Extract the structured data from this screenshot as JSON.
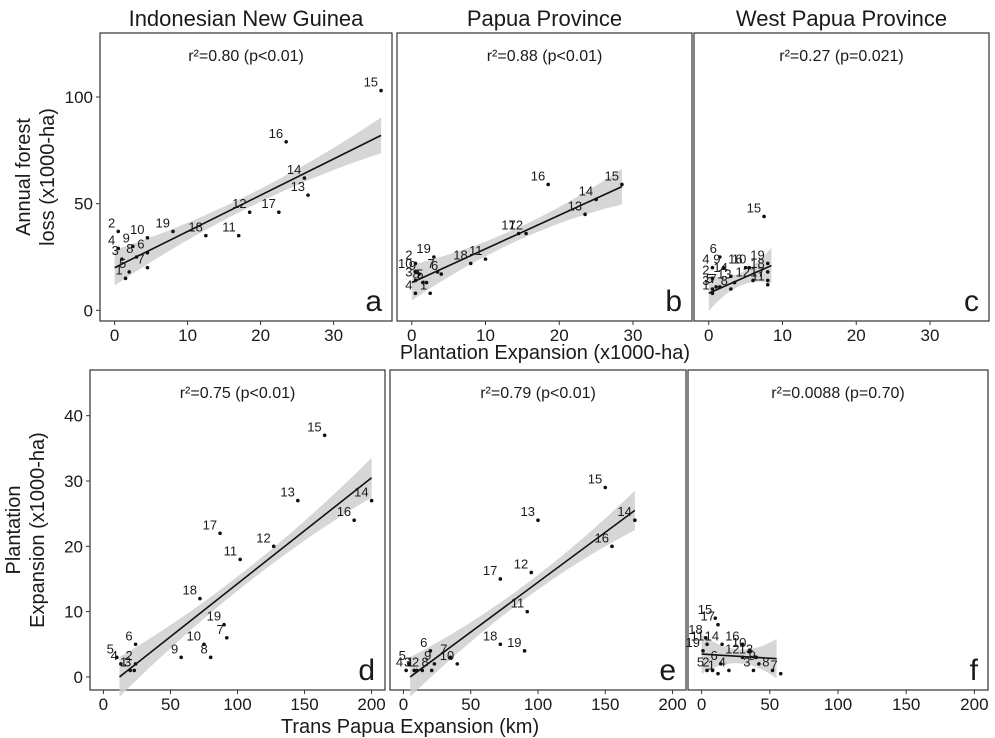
{
  "chart_data": [
    {
      "id": "a",
      "type": "scatter",
      "panel_letter": "a",
      "title": "Indonesian New Guinea",
      "stat": "r²=0.80 (p<0.01)",
      "xlabel": "Plantation Expansion (x1000-ha)",
      "ylabel": "Annual forest loss (x1000-ha)",
      "xlim": [
        -2,
        38
      ],
      "ylim": [
        -5,
        130
      ],
      "xticks": [
        0,
        10,
        20,
        30
      ],
      "yticks": [
        0,
        50,
        100
      ],
      "fit": {
        "x1": 0,
        "y1": 20,
        "x2": 36.5,
        "y2": 82
      },
      "points": [
        {
          "label": "1",
          "x": 1.5,
          "y": 15
        },
        {
          "label": "2",
          "x": 0.5,
          "y": 37
        },
        {
          "label": "3",
          "x": 1.0,
          "y": 24
        },
        {
          "label": "4",
          "x": 0.5,
          "y": 29
        },
        {
          "label": "5",
          "x": 2.0,
          "y": 18
        },
        {
          "label": "6",
          "x": 4.5,
          "y": 27
        },
        {
          "label": "7",
          "x": 4.5,
          "y": 20
        },
        {
          "label": "8",
          "x": 3.0,
          "y": 25
        },
        {
          "label": "9",
          "x": 2.5,
          "y": 30
        },
        {
          "label": "10",
          "x": 4.5,
          "y": 34
        },
        {
          "label": "11",
          "x": 17.0,
          "y": 35
        },
        {
          "label": "12",
          "x": 18.5,
          "y": 46
        },
        {
          "label": "13",
          "x": 26.5,
          "y": 54
        },
        {
          "label": "14",
          "x": 26.0,
          "y": 62
        },
        {
          "label": "15",
          "x": 36.5,
          "y": 103
        },
        {
          "label": "16",
          "x": 23.5,
          "y": 79
        },
        {
          "label": "17",
          "x": 22.5,
          "y": 46
        },
        {
          "label": "18",
          "x": 12.5,
          "y": 35
        },
        {
          "label": "19",
          "x": 8.0,
          "y": 37
        }
      ]
    },
    {
      "id": "b",
      "type": "scatter",
      "panel_letter": "b",
      "title": "Papua Province",
      "stat": "r²=0.88 (p<0.01)",
      "xlabel": "Plantation Expansion (x1000-ha)",
      "ylabel": "Annual forest loss (x1000-ha)",
      "xlim": [
        -2,
        38
      ],
      "ylim": [
        -5,
        130
      ],
      "xticks": [
        0,
        10,
        20,
        30
      ],
      "yticks": [
        0,
        50,
        100
      ],
      "fit": {
        "x1": 0,
        "y1": 13,
        "x2": 28.5,
        "y2": 58
      },
      "points": [
        {
          "label": "1",
          "x": 2.5,
          "y": 8
        },
        {
          "label": "2",
          "x": 0.5,
          "y": 22
        },
        {
          "label": "3",
          "x": 0.5,
          "y": 14
        },
        {
          "label": "4",
          "x": 0.5,
          "y": 8
        },
        {
          "label": "5",
          "x": 2.0,
          "y": 13
        },
        {
          "label": "6",
          "x": 4.0,
          "y": 17
        },
        {
          "label": "7",
          "x": 3.5,
          "y": 18
        },
        {
          "label": "8",
          "x": 1.5,
          "y": 13
        },
        {
          "label": "9",
          "x": 1.0,
          "y": 17
        },
        {
          "label": "10",
          "x": 0.5,
          "y": 18
        },
        {
          "label": "11",
          "x": 10.0,
          "y": 24
        },
        {
          "label": "12",
          "x": 15.5,
          "y": 36
        },
        {
          "label": "13",
          "x": 23.5,
          "y": 45
        },
        {
          "label": "14",
          "x": 25.0,
          "y": 52
        },
        {
          "label": "15",
          "x": 28.5,
          "y": 59
        },
        {
          "label": "16",
          "x": 18.5,
          "y": 59
        },
        {
          "label": "17",
          "x": 14.5,
          "y": 36
        },
        {
          "label": "18",
          "x": 8.0,
          "y": 22
        },
        {
          "label": "19",
          "x": 3.0,
          "y": 25
        }
      ]
    },
    {
      "id": "c",
      "type": "scatter",
      "panel_letter": "c",
      "title": "West Papua Province",
      "stat": "r²=0.27 (p=0.021)",
      "xlabel": "Plantation Expansion (x1000-ha)",
      "ylabel": "Annual forest loss (x1000-ha)",
      "xlim": [
        -2,
        38
      ],
      "ylim": [
        -5,
        130
      ],
      "xticks": [
        0,
        10,
        20,
        30
      ],
      "yticks": [
        0,
        50,
        100
      ],
      "fit": {
        "x1": 0,
        "y1": 8,
        "x2": 8.5,
        "y2": 21
      },
      "points": [
        {
          "label": "1",
          "x": 0.5,
          "y": 8
        },
        {
          "label": "2",
          "x": 0.5,
          "y": 15
        },
        {
          "label": "3",
          "x": 0.5,
          "y": 10
        },
        {
          "label": "4",
          "x": 0.5,
          "y": 20
        },
        {
          "label": "5",
          "x": 1.0,
          "y": 11
        },
        {
          "label": "6",
          "x": 1.5,
          "y": 25
        },
        {
          "label": "7",
          "x": 1.5,
          "y": 11
        },
        {
          "label": "8",
          "x": 3.0,
          "y": 10
        },
        {
          "label": "9",
          "x": 2.0,
          "y": 20
        },
        {
          "label": "10",
          "x": 5.5,
          "y": 20
        },
        {
          "label": "11",
          "x": 8.0,
          "y": 12
        },
        {
          "label": "12",
          "x": 6.0,
          "y": 14
        },
        {
          "label": "13",
          "x": 3.5,
          "y": 13
        },
        {
          "label": "14",
          "x": 3.0,
          "y": 16
        },
        {
          "label": "15",
          "x": 7.5,
          "y": 44
        },
        {
          "label": "16",
          "x": 5.0,
          "y": 20
        },
        {
          "label": "17",
          "x": 8.0,
          "y": 14
        },
        {
          "label": "18",
          "x": 8.0,
          "y": 18
        },
        {
          "label": "19",
          "x": 8.0,
          "y": 22
        }
      ]
    },
    {
      "id": "d",
      "type": "scatter",
      "panel_letter": "d",
      "title": "",
      "stat": "r²=0.75 (p<0.01)",
      "xlabel": "Trans Papua Expansion (km)",
      "ylabel": "Plantation Expansion (x1000-ha)",
      "xlim": [
        -10,
        210
      ],
      "ylim": [
        -2,
        47
      ],
      "xticks": [
        0,
        50,
        100,
        150,
        200
      ],
      "yticks": [
        0,
        10,
        20,
        30,
        40
      ],
      "fit": {
        "x1": 12,
        "y1": 0,
        "x2": 200,
        "y2": 30.5
      },
      "points": [
        {
          "label": "1",
          "x": 20,
          "y": 1
        },
        {
          "label": "2",
          "x": 24,
          "y": 2
        },
        {
          "label": "3",
          "x": 23,
          "y": 1
        },
        {
          "label": "4",
          "x": 13,
          "y": 2
        },
        {
          "label": "5",
          "x": 10,
          "y": 3
        },
        {
          "label": "6",
          "x": 24,
          "y": 5
        },
        {
          "label": "7",
          "x": 92,
          "y": 6
        },
        {
          "label": "8",
          "x": 80,
          "y": 3
        },
        {
          "label": "9",
          "x": 58,
          "y": 3
        },
        {
          "label": "10",
          "x": 75,
          "y": 5
        },
        {
          "label": "11",
          "x": 102,
          "y": 18
        },
        {
          "label": "12",
          "x": 127,
          "y": 20
        },
        {
          "label": "13",
          "x": 145,
          "y": 27
        },
        {
          "label": "14",
          "x": 200,
          "y": 27
        },
        {
          "label": "15",
          "x": 165,
          "y": 37
        },
        {
          "label": "16",
          "x": 187,
          "y": 24
        },
        {
          "label": "17",
          "x": 87,
          "y": 22
        },
        {
          "label": "18",
          "x": 72,
          "y": 12
        },
        {
          "label": "19",
          "x": 90,
          "y": 8
        }
      ]
    },
    {
      "id": "e",
      "type": "scatter",
      "panel_letter": "e",
      "title": "",
      "stat": "r²=0.79 (p<0.01)",
      "xlabel": "Trans Papua Expansion (km)",
      "ylabel": "Plantation Expansion (x1000-ha)",
      "xlim": [
        -10,
        210
      ],
      "ylim": [
        -2,
        47
      ],
      "xticks": [
        0,
        50,
        100,
        150,
        200
      ],
      "yticks": [
        0,
        10,
        20,
        30,
        40
      ],
      "fit": {
        "x1": 5,
        "y1": 0,
        "x2": 172,
        "y2": 25.5
      },
      "points": [
        {
          "label": "1",
          "x": 10,
          "y": 1
        },
        {
          "label": "2",
          "x": 14,
          "y": 1
        },
        {
          "label": "3",
          "x": 8,
          "y": 1
        },
        {
          "label": "4",
          "x": 2,
          "y": 1
        },
        {
          "label": "5",
          "x": 4,
          "y": 2
        },
        {
          "label": "6",
          "x": 20,
          "y": 4
        },
        {
          "label": "7",
          "x": 35,
          "y": 3
        },
        {
          "label": "8",
          "x": 21,
          "y": 1
        },
        {
          "label": "9",
          "x": 23,
          "y": 2
        },
        {
          "label": "10",
          "x": 40,
          "y": 2
        },
        {
          "label": "11",
          "x": 92,
          "y": 10
        },
        {
          "label": "12",
          "x": 95,
          "y": 16
        },
        {
          "label": "13",
          "x": 100,
          "y": 24
        },
        {
          "label": "14",
          "x": 172,
          "y": 24
        },
        {
          "label": "15",
          "x": 150,
          "y": 29
        },
        {
          "label": "16",
          "x": 155,
          "y": 20
        },
        {
          "label": "17",
          "x": 72,
          "y": 15
        },
        {
          "label": "18",
          "x": 72,
          "y": 5
        },
        {
          "label": "19",
          "x": 90,
          "y": 4
        }
      ]
    },
    {
      "id": "f",
      "type": "scatter",
      "panel_letter": "f",
      "title": "",
      "stat": "r²=0.0088 (p=0.70)",
      "xlabel": "Trans Papua Expansion (km)",
      "ylabel": "Plantation Expansion (x1000-ha)",
      "xlim": [
        -10,
        210
      ],
      "ylim": [
        -2,
        47
      ],
      "xticks": [
        0,
        50,
        100,
        150,
        200
      ],
      "yticks": [
        0,
        10,
        20,
        30,
        40
      ],
      "fit": {
        "x1": 0,
        "y1": 3.5,
        "x2": 55,
        "y2": 2.8
      },
      "points": [
        {
          "label": "1",
          "x": 12,
          "y": 0.5
        },
        {
          "label": "2",
          "x": 8,
          "y": 1
        },
        {
          "label": "3",
          "x": 38,
          "y": 1
        },
        {
          "label": "4",
          "x": 20,
          "y": 1
        },
        {
          "label": "5",
          "x": 4,
          "y": 1
        },
        {
          "label": "6",
          "x": 14,
          "y": 2
        },
        {
          "label": "7",
          "x": 58,
          "y": 0.5
        },
        {
          "label": "8",
          "x": 52,
          "y": 1
        },
        {
          "label": "9",
          "x": 42,
          "y": 2
        },
        {
          "label": "10",
          "x": 35,
          "y": 4
        },
        {
          "label": "11",
          "x": 4,
          "y": 5
        },
        {
          "label": "12",
          "x": 30,
          "y": 3
        },
        {
          "label": "13",
          "x": 40,
          "y": 3
        },
        {
          "label": "14",
          "x": 15,
          "y": 5
        },
        {
          "label": "15",
          "x": 10,
          "y": 9
        },
        {
          "label": "16",
          "x": 30,
          "y": 5
        },
        {
          "label": "17",
          "x": 12,
          "y": 8
        },
        {
          "label": "18",
          "x": 3,
          "y": 6
        },
        {
          "label": "19",
          "x": 1,
          "y": 4
        }
      ]
    }
  ]
}
